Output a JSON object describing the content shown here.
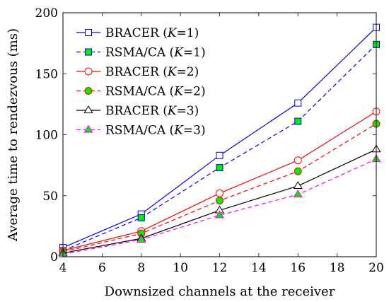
{
  "chart_data": {
    "type": "line",
    "xlabel": "Downsized channels at the receiver",
    "ylabel": "Average time to rendezvous (ms)",
    "x": [
      4,
      8,
      12,
      16,
      20
    ],
    "xlim": [
      4,
      20
    ],
    "ylim": [
      0,
      200
    ],
    "xticks": [
      4,
      6,
      8,
      10,
      12,
      14,
      16,
      18,
      20
    ],
    "yticks": [
      0,
      50,
      100,
      150,
      200
    ],
    "grid": false,
    "legend_position": "top-left",
    "series": [
      {
        "name": "BRACER (K=1)",
        "label_main": "BRACER (",
        "label_var": "K",
        "label_rest": "=1)",
        "values": [
          7.5,
          35,
          83,
          126,
          188
        ],
        "color": "#0000ff",
        "dash": "solid",
        "marker": "square-open"
      },
      {
        "name": "RSMA/CA (K=1)",
        "label_main": "RSMA/CA (",
        "label_var": "K",
        "label_rest": "=1)",
        "values": [
          5,
          32,
          73,
          111,
          174
        ],
        "color": "#0000ff",
        "dash": "dashed",
        "marker": "square-green"
      },
      {
        "name": "BRACER (K=2)",
        "label_main": "BRACER (",
        "label_var": "K",
        "label_rest": "=2)",
        "values": [
          5,
          21,
          52,
          79,
          119
        ],
        "color": "#ff0000",
        "dash": "solid",
        "marker": "circle-open"
      },
      {
        "name": "RSMA/CA (K=2)",
        "label_main": "RSMA/CA (",
        "label_var": "K",
        "label_rest": "=2)",
        "values": [
          4,
          19,
          46,
          70,
          109
        ],
        "color": "#ff0000",
        "dash": "dashed",
        "marker": "circle-green"
      },
      {
        "name": "BRACER (K=3)",
        "label_main": "BRACER (",
        "label_var": "K",
        "label_rest": "=3)",
        "values": [
          3,
          15,
          38,
          58,
          88
        ],
        "color": "#000000",
        "dash": "solid",
        "marker": "triangle-open"
      },
      {
        "name": "RSMA/CA (K=3)",
        "label_main": "RSMA/CA (",
        "label_var": "K",
        "label_rest": "=3)",
        "values": [
          2,
          14,
          34,
          51,
          80
        ],
        "color": "#ff00ff",
        "dash": "dashed",
        "marker": "triangle-green"
      }
    ]
  }
}
